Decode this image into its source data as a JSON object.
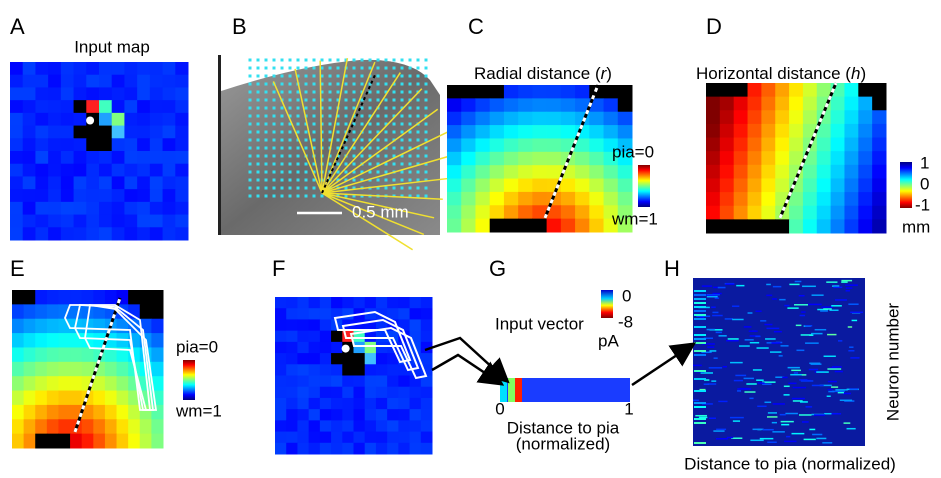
{
  "panels": {
    "a": {
      "label": "A",
      "title": "Input map"
    },
    "b": {
      "label": "B",
      "scale_bar": "0.5 mm"
    },
    "c": {
      "label": "C",
      "title": {
        "before": "Radial distance (",
        "variable": "r",
        "after": ")"
      },
      "colorbar_top": "pia=0",
      "colorbar_bottom": "wm=1"
    },
    "d": {
      "label": "D",
      "title": {
        "before": "Horizontal distance (",
        "variable": "h",
        "after": ")"
      },
      "colorbar_ticks": [
        "1",
        "0",
        "-1"
      ],
      "colorbar_unit": "mm"
    },
    "e": {
      "label": "E",
      "colorbar_top": "pia=0",
      "colorbar_bottom": "wm=1"
    },
    "f": {
      "label": "F"
    },
    "g": {
      "label": "G",
      "colorbar_ticks": [
        "0",
        "-8"
      ],
      "colorbar_unit": "pA",
      "title": "Input vector",
      "axis_ticks": [
        "0",
        "1"
      ],
      "axis_label": [
        "Distance to pia",
        "(normalized)"
      ]
    },
    "h": {
      "label": "H",
      "y_label": "Neuron number",
      "x_label": "Distance to pia (normalized)"
    }
  }
}
